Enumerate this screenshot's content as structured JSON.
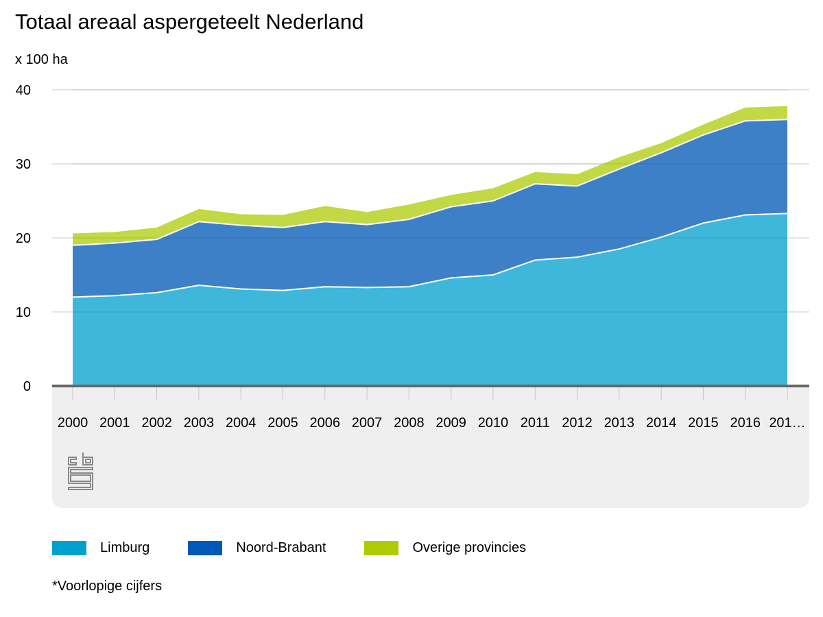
{
  "header": {
    "title": "Totaal areaal aspergeteelt Nederland",
    "unit_label": "x 100 ha"
  },
  "chart_data": {
    "type": "area",
    "stacked": true,
    "title": "Totaal areaal aspergeteelt Nederland",
    "xlabel": "",
    "ylabel": "x 100 ha",
    "ylim": [
      0,
      40
    ],
    "yticks": [
      0,
      10,
      20,
      30,
      40
    ],
    "grid": true,
    "legend_position": "bottom",
    "categories": [
      "2000",
      "2001",
      "2002",
      "2003",
      "2004",
      "2005",
      "2006",
      "2007",
      "2008",
      "2009",
      "2010",
      "2011",
      "2012",
      "2013",
      "2014",
      "2015",
      "2016",
      "201…"
    ],
    "series": [
      {
        "name": "Limburg",
        "color": "#3fb7da",
        "legend_color": "#00a1cd",
        "values": [
          12.0,
          12.2,
          12.6,
          13.6,
          13.1,
          12.9,
          13.4,
          13.3,
          13.4,
          14.6,
          15.0,
          17.0,
          17.4,
          18.5,
          20.1,
          22.0,
          23.1,
          23.3
        ]
      },
      {
        "name": "Noord-Brabant",
        "color": "#3e80c8",
        "legend_color": "#0058b8",
        "values": [
          7.0,
          7.1,
          7.2,
          8.6,
          8.6,
          8.5,
          8.8,
          8.5,
          9.1,
          9.6,
          10.0,
          10.3,
          9.6,
          10.8,
          11.4,
          11.9,
          12.7,
          12.7
        ]
      },
      {
        "name": "Overige provincies",
        "color": "#c2d844",
        "legend_color": "#afcb05",
        "values": [
          1.6,
          1.5,
          1.6,
          1.7,
          1.5,
          1.7,
          2.1,
          1.7,
          2.0,
          1.6,
          1.7,
          1.6,
          1.6,
          1.6,
          1.3,
          1.4,
          1.8,
          1.8
        ]
      }
    ]
  },
  "footnote": "*Voorlopige cijfers"
}
